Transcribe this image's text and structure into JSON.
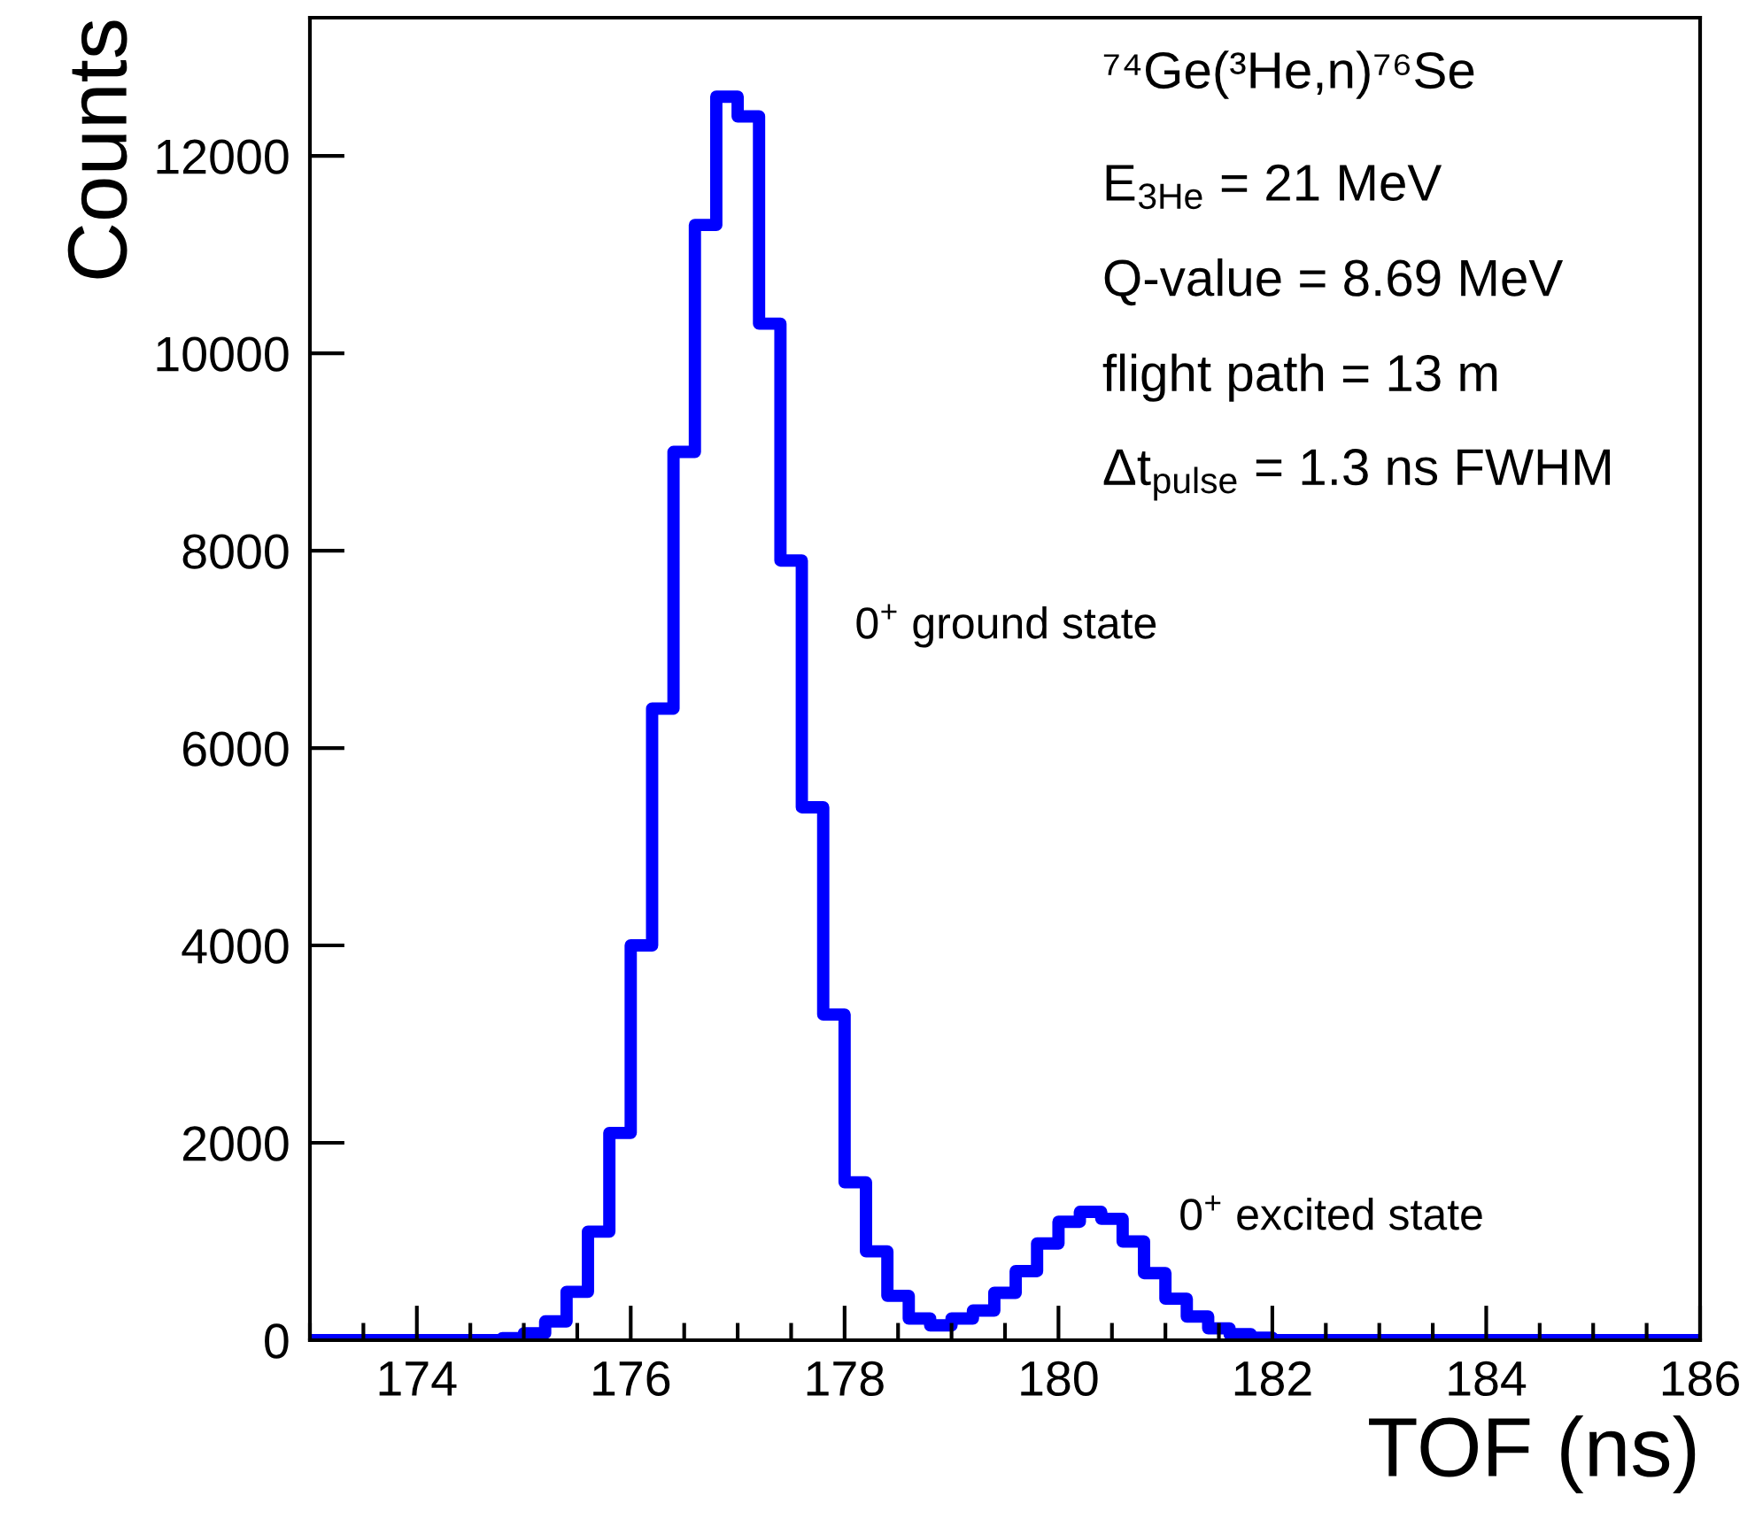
{
  "chart_data": {
    "type": "histogram",
    "xlabel": "TOF (ns)",
    "ylabel": "Counts",
    "color": "#0000ff",
    "bins": [
      173.0,
      173.2,
      173.4,
      173.6,
      173.8,
      174.0,
      174.2,
      174.4,
      174.6,
      174.8,
      175.0,
      175.2,
      175.4,
      175.6,
      175.8,
      176.0,
      176.2,
      176.4,
      176.6,
      176.8,
      177.0,
      177.2,
      177.4,
      177.6,
      177.8,
      178.0,
      178.2,
      178.4,
      178.6,
      178.8,
      179.0,
      179.2,
      179.4,
      179.6,
      179.8,
      180.0,
      180.2,
      180.4,
      180.6,
      180.8,
      181.0,
      181.2,
      181.4,
      181.6,
      181.8,
      182.0,
      182.2,
      182.4,
      182.6,
      182.8,
      183.0,
      183.2,
      183.4,
      183.6,
      183.8,
      184.0,
      184.2,
      184.4,
      184.6,
      184.8,
      185.0,
      185.2,
      185.4,
      185.6,
      185.8,
      186.0
    ],
    "values": [
      0,
      0,
      0,
      0,
      0,
      0,
      0,
      0,
      0,
      20,
      70,
      190,
      490,
      1100,
      2100,
      4000,
      6400,
      9000,
      11300,
      12600,
      12400,
      10300,
      7900,
      5400,
      3300,
      1600,
      900,
      450,
      220,
      150,
      220,
      300,
      480,
      700,
      980,
      1200,
      1300,
      1230,
      1000,
      680,
      420,
      240,
      120,
      60,
      25,
      0,
      0,
      0,
      0,
      0,
      0,
      0,
      0,
      0,
      0,
      0,
      0,
      0,
      0,
      0,
      0,
      0,
      0,
      0,
      0
    ],
    "xlim": [
      173,
      186
    ],
    "xticks": [
      174,
      176,
      178,
      180,
      182,
      184,
      186
    ],
    "ylim": [
      0,
      13400
    ],
    "yticks": [
      0,
      2000,
      4000,
      6000,
      8000,
      10000,
      12000
    ],
    "grid": false,
    "annotations": [
      {
        "text": "⁷⁴Ge(³He,n)⁷⁶Se"
      },
      {
        "text": "E$_{3He}$ = 21 MeV"
      },
      {
        "text": "Q-value = 8.69 MeV"
      },
      {
        "text": "flight path = 13 m"
      },
      {
        "text": "Δt$_{pulse}$ = 1.3 ns FWHM"
      },
      "0$^{+}$ ground state",
      "0$^{+}$ excited state"
    ]
  }
}
